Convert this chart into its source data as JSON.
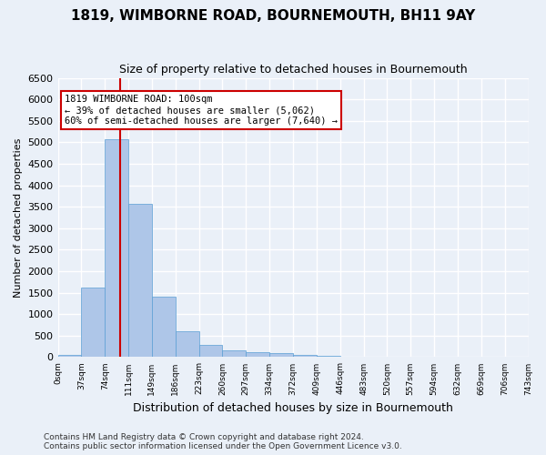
{
  "title": "1819, WIMBORNE ROAD, BOURNEMOUTH, BH11 9AY",
  "subtitle": "Size of property relative to detached houses in Bournemouth",
  "xlabel": "Distribution of detached houses by size in Bournemouth",
  "ylabel": "Number of detached properties",
  "footer_line1": "Contains HM Land Registry data © Crown copyright and database right 2024.",
  "footer_line2": "Contains public sector information licensed under the Open Government Licence v3.0.",
  "bin_labels": [
    "0sqm",
    "37sqm",
    "74sqm",
    "111sqm",
    "149sqm",
    "186sqm",
    "223sqm",
    "260sqm",
    "297sqm",
    "334sqm",
    "372sqm",
    "409sqm",
    "446sqm",
    "483sqm",
    "520sqm",
    "557sqm",
    "594sqm",
    "632sqm",
    "669sqm",
    "706sqm",
    "743sqm"
  ],
  "bar_values": [
    60,
    1620,
    5080,
    3570,
    1400,
    600,
    290,
    155,
    120,
    90,
    50,
    30,
    10,
    5,
    5,
    5,
    0,
    0,
    0,
    0
  ],
  "bar_color": "#aec6e8",
  "bar_edge_color": "#5a9fd4",
  "vline_x": 2.65,
  "vline_color": "#cc0000",
  "annotation_text": "1819 WIMBORNE ROAD: 100sqm\n← 39% of detached houses are smaller (5,062)\n60% of semi-detached houses are larger (7,640) →",
  "annotation_box_color": "white",
  "annotation_box_edge_color": "#cc0000",
  "ylim": [
    0,
    6500
  ],
  "yticks": [
    0,
    500,
    1000,
    1500,
    2000,
    2500,
    3000,
    3500,
    4000,
    4500,
    5000,
    5500,
    6000,
    6500
  ],
  "bg_color": "#eaf0f8",
  "grid_color": "white",
  "figsize": [
    6.0,
    5.0
  ],
  "dpi": 100
}
